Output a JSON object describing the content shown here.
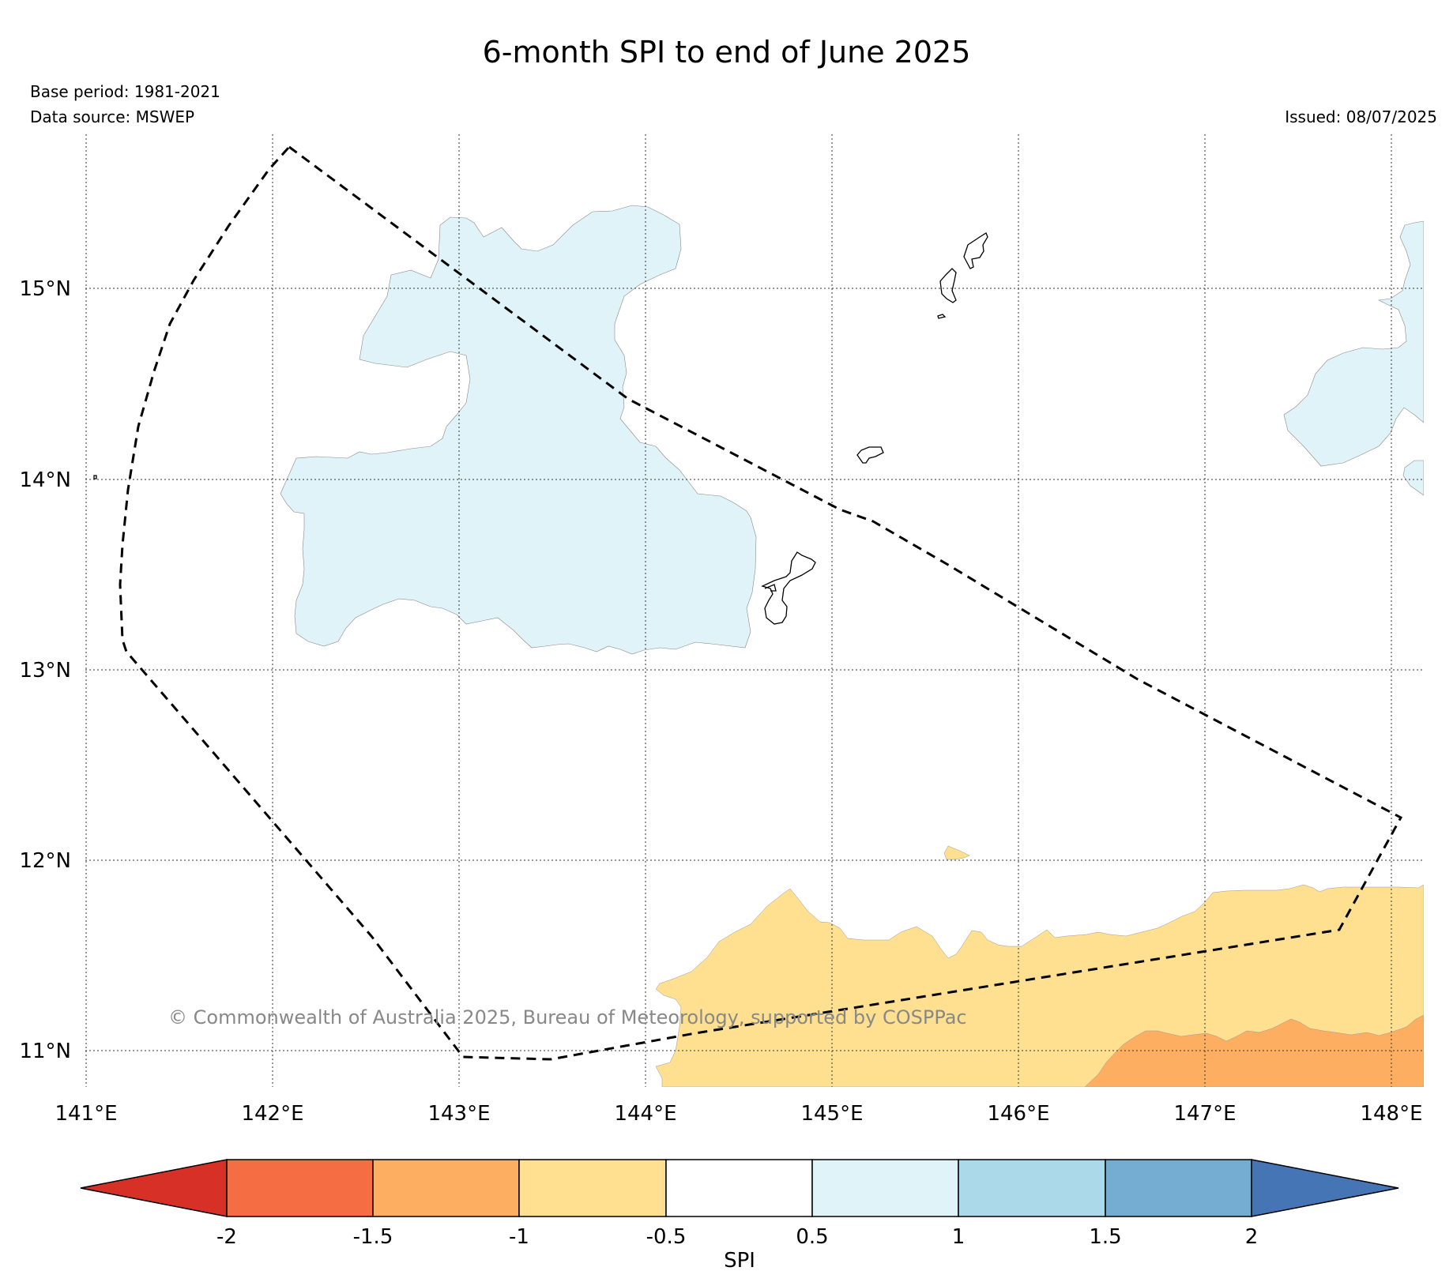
{
  "title": "6-month SPI to end of June 2025",
  "base_period": "Base period: 1981-2021",
  "data_source": "Data source: MSWEP",
  "issued": "Issued: 08/07/2025",
  "copyright": "© Commonwealth of Australia 2025, Bureau of Meteorology, supported by COSPPac",
  "map": {
    "lon_range": [
      141.0,
      148.2
    ],
    "lat_range": [
      10.8,
      15.8
    ],
    "lon_ticks": [
      "141°E",
      "142°E",
      "143°E",
      "144°E",
      "145°E",
      "146°E",
      "147°E",
      "148°E"
    ],
    "lat_ticks": [
      "11°N",
      "12°N",
      "13°N",
      "14°N",
      "15°N"
    ],
    "gridlines": "dotted",
    "region_boundary": "dashed",
    "colors": {
      "wet_mild": "#e0f3f8",
      "dry_mild": "#fee090",
      "dry_moderate": "#fdae61",
      "coastline": "#000000"
    }
  },
  "colorbar": {
    "label": "SPI",
    "ticks": [
      "-2",
      "-1.5",
      "-1",
      "-0.5",
      "0.5",
      "1",
      "1.5",
      "2"
    ],
    "colors": [
      "#d73027",
      "#f46d43",
      "#fdae61",
      "#fee090",
      "#ffffff",
      "#e0f3f8",
      "#abd9e9",
      "#74add1",
      "#4575b4"
    ]
  }
}
